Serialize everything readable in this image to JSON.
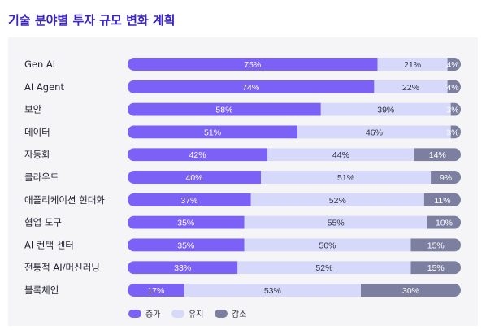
{
  "title": "기술 분야별 투자 규모 변화 계획",
  "colors": {
    "increase": "#7b61f5",
    "maintain": "#d6d9fa",
    "decrease": "#7d7fa0",
    "title": "#3a23c8"
  },
  "chart_data": {
    "type": "bar",
    "stacked": true,
    "orientation": "horizontal",
    "percent_scale": true,
    "xlim": [
      0,
      100
    ],
    "legend_position": "bottom-left",
    "categories": [
      "Gen AI",
      "AI Agent",
      "보안",
      "데이터",
      "자동화",
      "클라우드",
      "애플리케이션 현대화",
      "협업 도구",
      "AI 컨택 센터",
      "전통적 AI/머신러닝",
      "블록체인"
    ],
    "series": [
      {
        "name": "증가",
        "values": [
          75,
          74,
          58,
          51,
          42,
          40,
          37,
          35,
          35,
          33,
          17
        ]
      },
      {
        "name": "유지",
        "values": [
          21,
          22,
          39,
          46,
          44,
          51,
          52,
          55,
          50,
          52,
          53
        ]
      },
      {
        "name": "감소",
        "values": [
          4,
          4,
          3,
          3,
          14,
          9,
          11,
          10,
          15,
          15,
          30
        ]
      }
    ],
    "value_suffix": "%"
  }
}
